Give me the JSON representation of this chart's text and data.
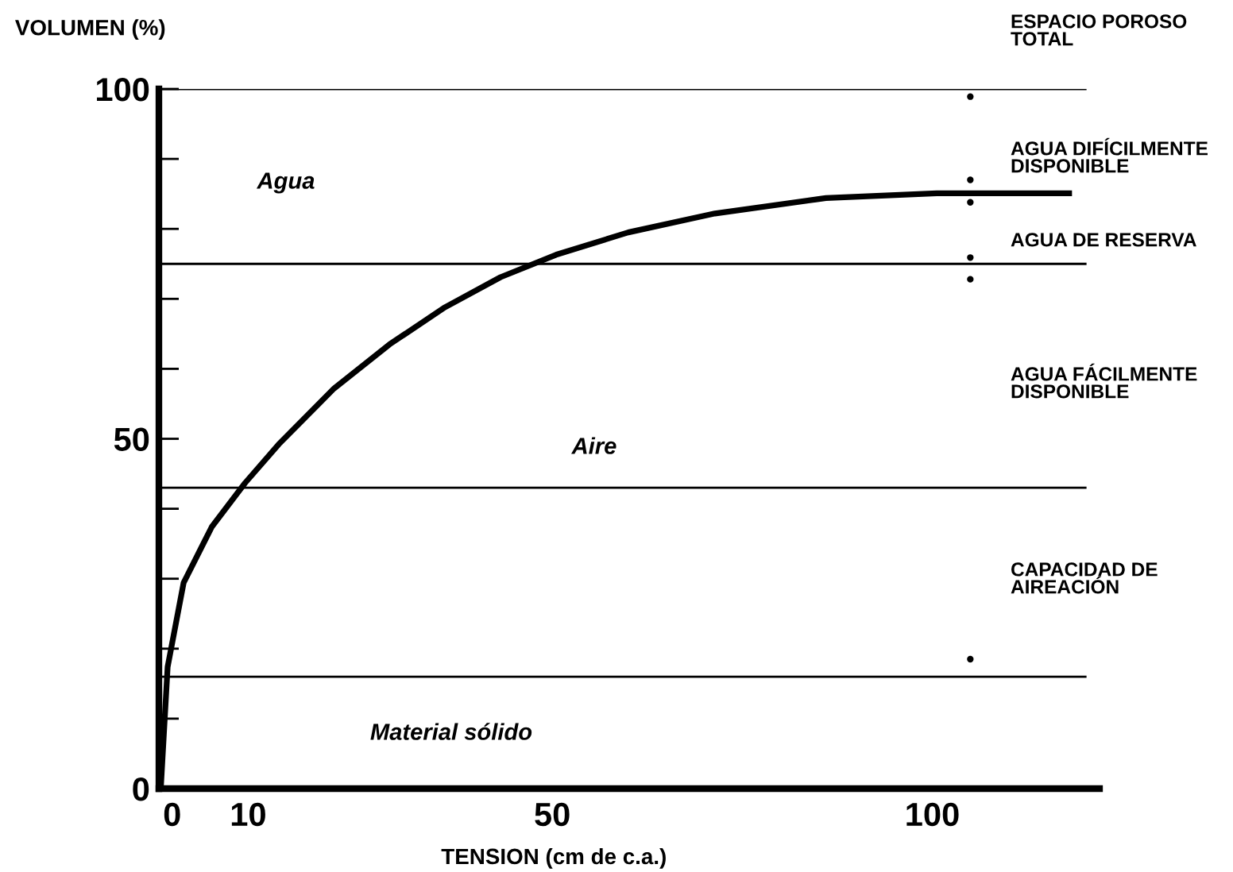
{
  "chart_data": {
    "type": "line",
    "xlabel": "TENSION (cm de c.a.)",
    "ylabel": "VOLUMEN (%)",
    "xlim": [
      -1.75,
      122
    ],
    "ylim": [
      0,
      100
    ],
    "xticks": [
      0,
      10,
      50,
      100
    ],
    "yticks": [
      0,
      {
        "value": 10,
        "label": null
      },
      {
        "value": 20,
        "label": null
      },
      {
        "value": 30,
        "label": null
      },
      {
        "value": 40,
        "label": null
      },
      50,
      {
        "value": 60,
        "label": null
      },
      {
        "value": 70,
        "label": null
      },
      {
        "value": 80,
        "label": null
      },
      {
        "value": 90,
        "label": null
      },
      100
    ],
    "grid": false,
    "legend": false,
    "series": [
      {
        "color": "#000000",
        "marker": "none",
        "line_style": "solid",
        "x": [
          -1.5,
          -0.6,
          1.5,
          5.2,
          9.6,
          14,
          21.3,
          28.6,
          35.9,
          43.2,
          50.5,
          60,
          71.4,
          86,
          100.6,
          118
        ],
        "values": [
          0,
          17.4,
          29.4,
          37.4,
          43.7,
          49.2,
          57.2,
          63.5,
          68.8,
          73.1,
          76.3,
          79.5,
          82.2,
          84.4,
          85.1,
          85.1
        ]
      },
      {
        "type": "scatter",
        "color": "#000000",
        "marker": "circle",
        "x": [
          105,
          105,
          105,
          105,
          105,
          105
        ],
        "values": [
          98.9,
          87,
          83.8,
          75.9,
          72.8,
          18.5
        ]
      }
    ],
    "ref_lines": [
      {
        "axis": "y",
        "value": 100,
        "color": "#000000"
      },
      {
        "axis": "y",
        "value": 75,
        "color": "#000000"
      },
      {
        "axis": "y",
        "value": 43,
        "color": "#000000"
      },
      {
        "axis": "y",
        "value": 16,
        "color": "#000000"
      }
    ],
    "annotations": [
      "ESPACIO POROSO\nTOTAL",
      "AGUA DIFÍCILMENTE\nDISPONIBLE",
      "AGUA DE RESERVA",
      "AGUA FÁCILMENTE\nDISPONIBLE",
      "CAPACIDAD DE\nAIREACIÓN",
      "Agua",
      "Aire",
      "Material sólido"
    ]
  }
}
